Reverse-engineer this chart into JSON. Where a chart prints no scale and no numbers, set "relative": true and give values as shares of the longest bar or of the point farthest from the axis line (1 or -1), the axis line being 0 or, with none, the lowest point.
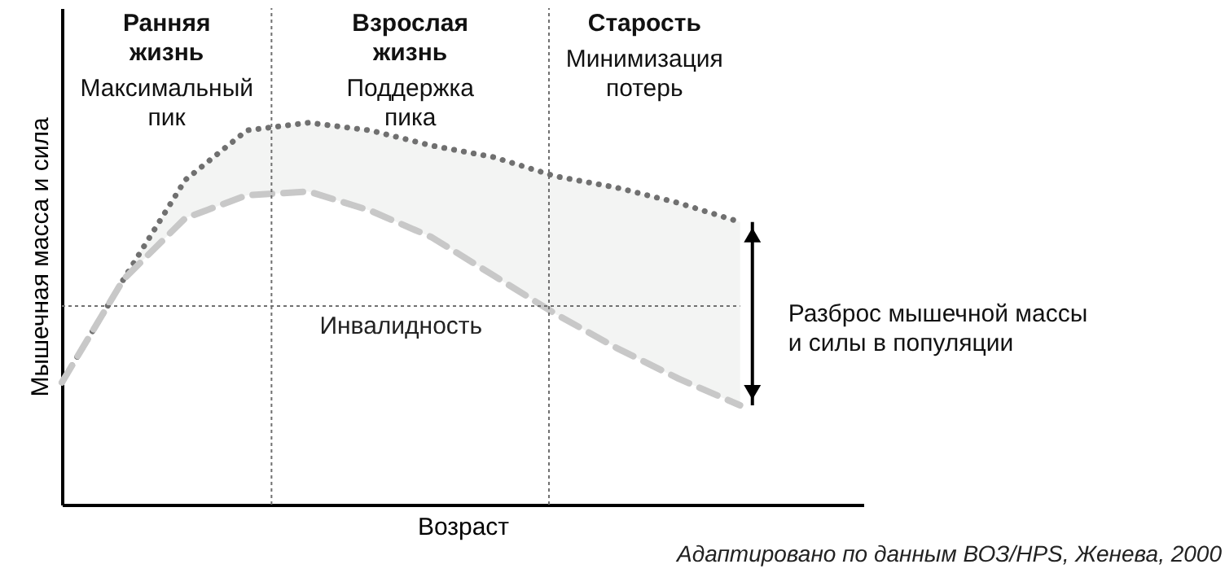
{
  "chart_data": {
    "type": "line",
    "relative": true,
    "xlabel": "Возраст",
    "ylabel": "Мышечная масса и сила",
    "categories": [
      null,
      null,
      null,
      null,
      null,
      null,
      null,
      null,
      null,
      null,
      null,
      null
    ],
    "tick_labels": false,
    "grid": false,
    "marker": "none",
    "series": [
      {
        "color": "#707070",
        "line_style": "dotted",
        "values": [
          0.32,
          0.59,
          0.85,
          0.98,
          1.0,
          0.98,
          0.94,
          0.91,
          0.86,
          0.83,
          0.79,
          0.74
        ],
        "lower": [
          0.32,
          0.59,
          0.75,
          0.81,
          0.82,
          0.77,
          0.7,
          0.6,
          0.5,
          0.41,
          0.33,
          0.26
        ],
        "upper": [
          0.32,
          0.59,
          0.85,
          0.98,
          1.0,
          0.98,
          0.94,
          0.91,
          0.86,
          0.83,
          0.79,
          0.74
        ]
      },
      {
        "color": "#c8c8c8",
        "line_style": "dashed",
        "values": [
          0.32,
          0.59,
          0.75,
          0.81,
          0.82,
          0.77,
          0.7,
          0.6,
          0.5,
          0.41,
          0.33,
          0.26
        ]
      }
    ],
    "ref_lines": [
      {
        "axis": "y",
        "value": 0.52,
        "label": "Инвалидность",
        "color": "#707070",
        "line_style": "dotted"
      }
    ],
    "annotations": [
      "Ранняя\nжизнь",
      "Взрослая\nжизнь",
      "Старость",
      "Максимальный\nпик",
      "Поддержка\nпика",
      "Минимизация\nпотерь",
      "Разброс мышечной массы\nи силы в популяции",
      "Адаптировано по данным ВОЗ/HPS, Женева, 2000"
    ]
  }
}
